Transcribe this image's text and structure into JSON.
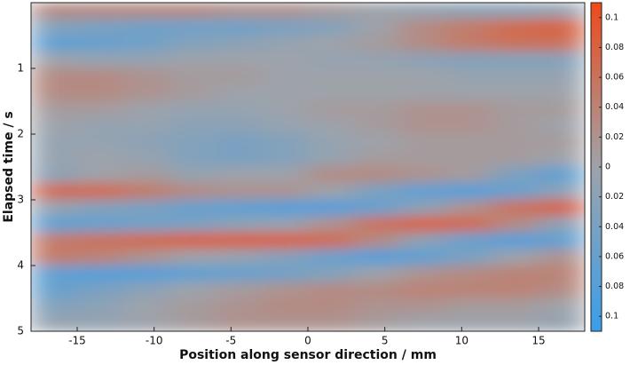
{
  "chart_data": {
    "type": "heatmap",
    "xlabel": "Position along sensor direction / mm",
    "ylabel": "Elapsed time / s",
    "x": [
      -16.5,
      -13.5,
      -10.5,
      -7.5,
      -4.5,
      -1.5,
      1.5,
      4.5,
      7.5,
      10.5,
      13.5,
      16.5
    ],
    "y": [
      0.125,
      0.375,
      0.625,
      0.875,
      1.125,
      1.375,
      1.625,
      1.875,
      2.125,
      2.375,
      2.625,
      2.875,
      3.125,
      3.375,
      3.625,
      3.875,
      4.125,
      4.375,
      4.625,
      4.875
    ],
    "z": [
      [
        0.03,
        0.03,
        0.03,
        0.03,
        0.02,
        0.02,
        0.01,
        0,
        -0.01,
        -0.02,
        -0.02,
        -0.01
      ],
      [
        -0.03,
        -0.04,
        -0.05,
        -0.05,
        -0.05,
        -0.04,
        -0.03,
        0,
        0.03,
        0.05,
        0.07,
        0.08
      ],
      [
        -0.07,
        -0.06,
        -0.05,
        -0.03,
        -0.02,
        -0.01,
        0,
        0.01,
        0.03,
        0.05,
        0.06,
        0.06
      ],
      [
        0,
        -0.01,
        -0.01,
        0,
        0,
        0,
        -0.01,
        -0.01,
        -0.02,
        -0.03,
        -0.03,
        -0.03
      ],
      [
        0.03,
        0.03,
        0.02,
        0.01,
        0.01,
        0,
        0,
        0,
        0,
        -0.01,
        -0.01,
        -0.01
      ],
      [
        0.03,
        0.03,
        0.02,
        0.01,
        0,
        0,
        0,
        0,
        0,
        0,
        0,
        0
      ],
      [
        0.01,
        0.01,
        0,
        -0.01,
        -0.01,
        0,
        0.01,
        0.01,
        0.02,
        0.02,
        0.01,
        0.01
      ],
      [
        0,
        -0.01,
        -0.01,
        -0.02,
        -0.02,
        -0.01,
        0,
        0.01,
        0.02,
        0.02,
        0.01,
        0
      ],
      [
        -0.01,
        -0.01,
        -0.02,
        -0.03,
        -0.04,
        -0.03,
        -0.01,
        0,
        0.01,
        0.01,
        0.01,
        0.01
      ],
      [
        -0.01,
        0,
        -0.01,
        -0.03,
        -0.04,
        -0.03,
        -0.01,
        0.01,
        0.01,
        0.01,
        0.01,
        0
      ],
      [
        -0.02,
        0,
        0.01,
        -0.01,
        0,
        0,
        0.03,
        0.03,
        0.02,
        0.01,
        -0.04,
        -0.07
      ],
      [
        0.07,
        0.07,
        0.05,
        0.03,
        0.02,
        0.02,
        0,
        -0.04,
        -0.07,
        -0.08,
        -0.06,
        -0.02
      ],
      [
        -0.01,
        -0.03,
        -0.04,
        -0.06,
        -0.07,
        -0.08,
        -0.08,
        -0.06,
        -0.02,
        0.02,
        0.06,
        0.08
      ],
      [
        -0.07,
        -0.06,
        -0.05,
        -0.04,
        -0.02,
        -0.01,
        0.02,
        0.06,
        0.08,
        0.07,
        0.03,
        -0.02
      ],
      [
        0.05,
        0.06,
        0.07,
        0.08,
        0.08,
        0.08,
        0.07,
        0.03,
        -0.02,
        -0.06,
        -0.08,
        -0.07
      ],
      [
        0.05,
        0.04,
        0.02,
        0,
        -0.01,
        -0.03,
        -0.06,
        -0.08,
        -0.07,
        -0.04,
        0,
        0.02
      ],
      [
        -0.07,
        -0.08,
        -0.08,
        -0.07,
        -0.06,
        -0.05,
        -0.03,
        0,
        0.02,
        0.03,
        0.04,
        0.04
      ],
      [
        -0.06,
        -0.04,
        -0.02,
        0,
        0.01,
        0.02,
        0.03,
        0.03,
        0.04,
        0.04,
        0.04,
        0.03
      ],
      [
        -0.03,
        -0.02,
        0,
        0.01,
        0.02,
        0.03,
        0.03,
        0.02,
        0.02,
        0.01,
        0.01,
        0
      ],
      [
        -0.01,
        -0.01,
        0,
        0.01,
        0.02,
        0.02,
        0.02,
        0.01,
        0,
        0,
        0,
        -0.01
      ]
    ],
    "xlim": [
      -18,
      18
    ],
    "xticks": [
      -15,
      -10,
      -5,
      0,
      5,
      10,
      15
    ],
    "ylim": [
      0,
      5
    ],
    "yticks": [
      1,
      2,
      3,
      4,
      5
    ],
    "clim": [
      -0.11,
      0.11
    ],
    "cticks": [
      0.1,
      0.08,
      0.06,
      0.04,
      0.02,
      0,
      {
        "value": -0.02,
        "label": "0.02"
      },
      {
        "value": -0.04,
        "label": "0.04"
      },
      {
        "value": -0.06,
        "label": "0.06"
      },
      {
        "value": -0.08,
        "label": "0.08"
      },
      {
        "value": -0.1,
        "label": "0.1"
      }
    ],
    "colors": [
      "#3a9eea",
      "#9ea3aa",
      "#ee4a1a"
    ]
  }
}
